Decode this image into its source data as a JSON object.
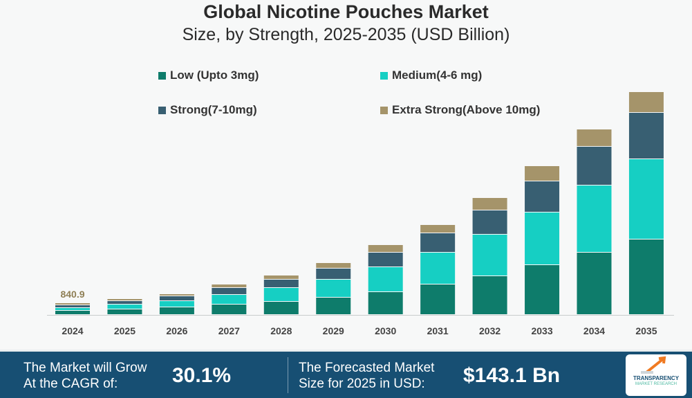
{
  "header": {
    "title": "Global Nicotine Pouches Market",
    "subtitle": "Size, by Strength, 2025-2035 (USD Billion)"
  },
  "chart_data": {
    "type": "bar",
    "stacked": true,
    "title": "Global Nicotine Pouches Market",
    "subtitle": "Size, by Strength, 2025-2035 (USD Billion)",
    "xlabel": "",
    "ylabel": "",
    "note": "values are relative estimates read from bar heights; only 2024 total is labeled",
    "ylim": [
      0,
      330
    ],
    "grid": false,
    "legend_position": "top",
    "categories": [
      "2024",
      "2025",
      "2026",
      "2027",
      "2028",
      "2029",
      "2030",
      "2031",
      "2032",
      "2033",
      "2034",
      "2035"
    ],
    "series": [
      {
        "name": "Low (Upto 3mg)",
        "color": "#0e7c6b",
        "values": [
          6,
          8,
          11,
          15,
          19,
          25,
          33,
          44,
          56,
          72,
          90,
          109
        ]
      },
      {
        "name": "Medium(4-6 mg)",
        "color": "#16cfc3",
        "values": [
          4,
          7,
          9,
          14,
          20,
          26,
          36,
          46,
          60,
          76,
          97,
          116
        ]
      },
      {
        "name": "Strong(7-10mg)",
        "color": "#385f72",
        "values": [
          4,
          5,
          7,
          10,
          12,
          16,
          21,
          28,
          35,
          45,
          56,
          67
        ]
      },
      {
        "name": "Extra Strong(Above 10mg)",
        "color": "#a5946a",
        "values": [
          3,
          3,
          3,
          5,
          6,
          8,
          11,
          12,
          18,
          22,
          25,
          30
        ]
      }
    ],
    "data_labels": [
      {
        "category": "2024",
        "text": "840.9",
        "color": "#8f7f55"
      }
    ]
  },
  "footer": {
    "cagr_text_1": "The Market will Grow",
    "cagr_text_2": "At the CAGR of:",
    "cagr_value": "30.1%",
    "forecast_text_1": "The Forecasted Market",
    "forecast_text_2": "Size for 2025 in USD:",
    "forecast_value": "$143.1 Bn",
    "logo_text_1": "TRANSPARENCY",
    "logo_text_2": "MARKET RESEARCH"
  }
}
